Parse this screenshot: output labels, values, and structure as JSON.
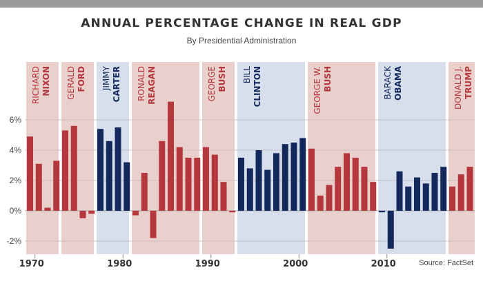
{
  "header": {
    "title": "ANNUAL PERCENTAGE CHANGE IN REAL GDP",
    "subtitle": "By Presidential Administration"
  },
  "source": "Source: FactSet",
  "colors": {
    "republican_bar": "#b4373d",
    "democrat_bar": "#13295b",
    "republican_band": "#ead0cc",
    "democrat_band": "#d8dfec",
    "republican_label": "#b4373d",
    "democrat_label": "#13295b"
  },
  "chart_data": {
    "type": "bar",
    "title": "ANNUAL PERCENTAGE CHANGE IN REAL GDP",
    "subtitle": "By Presidential Administration",
    "xlabel": "",
    "ylabel": "",
    "ylim": [
      -3,
      7.5
    ],
    "yticks": [
      -2,
      0,
      2,
      4,
      6
    ],
    "ytick_labels": [
      "-2%",
      "0%",
      "2%",
      "4%",
      "6%"
    ],
    "xtick_years": [
      1970,
      1980,
      1990,
      2000,
      2010
    ],
    "xtick_labels": [
      "1970",
      "1980",
      "1990",
      "2000",
      "2010"
    ],
    "grid": true,
    "years": [
      1969,
      1970,
      1971,
      1972,
      1973,
      1974,
      1975,
      1976,
      1977,
      1978,
      1979,
      1980,
      1981,
      1982,
      1983,
      1984,
      1985,
      1986,
      1987,
      1988,
      1989,
      1990,
      1991,
      1992,
      1993,
      1994,
      1995,
      1996,
      1997,
      1998,
      1999,
      2000,
      2001,
      2002,
      2003,
      2004,
      2005,
      2006,
      2007,
      2008,
      2009,
      2010,
      2011,
      2012,
      2013,
      2014,
      2015,
      2016,
      2017,
      2018,
      2019
    ],
    "values": [
      4.9,
      3.1,
      0.2,
      3.3,
      5.3,
      5.6,
      -0.5,
      -0.2,
      5.4,
      4.6,
      5.5,
      3.2,
      -0.3,
      2.5,
      -1.8,
      4.6,
      7.2,
      4.2,
      3.5,
      3.5,
      4.2,
      3.7,
      1.9,
      -0.1,
      3.5,
      2.8,
      4.0,
      2.7,
      3.8,
      4.4,
      4.5,
      4.8,
      4.1,
      1.0,
      1.7,
      2.9,
      3.8,
      3.5,
      2.9,
      1.9,
      -0.1,
      -2.5,
      2.6,
      1.6,
      2.2,
      1.8,
      2.5,
      2.9,
      1.6,
      2.4,
      2.9
    ],
    "administrations": [
      {
        "first": "RICHARD",
        "last": "NIXON",
        "party": "R",
        "start": 1969,
        "end": 1972
      },
      {
        "first": "GERALD",
        "last": "FORD",
        "party": "R",
        "start": 1973,
        "end": 1976
      },
      {
        "first": "JIMMY",
        "last": "CARTER",
        "party": "D",
        "start": 1977,
        "end": 1980
      },
      {
        "first": "RONALD",
        "last": "REAGAN",
        "party": "R",
        "start": 1981,
        "end": 1988
      },
      {
        "first": "GEORGE",
        "last": "BUSH",
        "party": "R",
        "start": 1989,
        "end": 1992
      },
      {
        "first": "BILL",
        "last": "CLINTON",
        "party": "D",
        "start": 1993,
        "end": 2000
      },
      {
        "first": "GEORGE W.",
        "last": "BUSH",
        "party": "R",
        "start": 2001,
        "end": 2008
      },
      {
        "first": "BARACK",
        "last": "OBAMA",
        "party": "D",
        "start": 2009,
        "end": 2016
      },
      {
        "first": "DONALD J.",
        "last": "TRUMP",
        "party": "R",
        "start": 2017,
        "end": 2019
      }
    ]
  }
}
